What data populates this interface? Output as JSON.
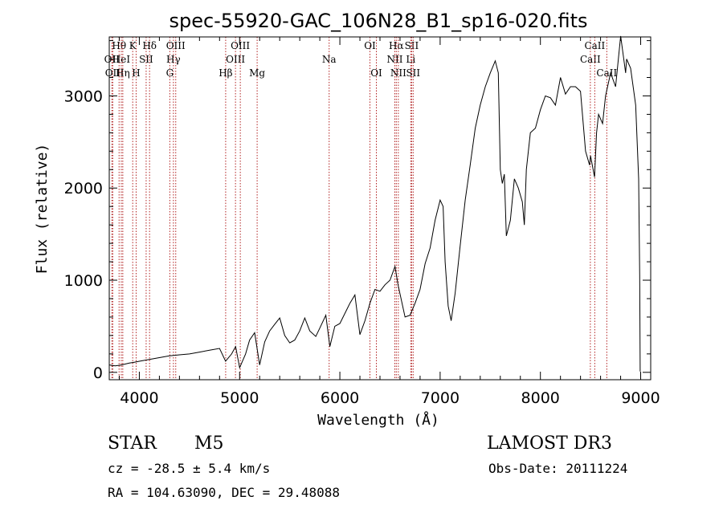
{
  "chart_data": {
    "type": "line",
    "title": "spec-55920-GAC_106N28_B1_sp16-020.fits",
    "xlabel": "Wavelength (Å)",
    "ylabel": "Flux (relative)",
    "xlim": [
      3700,
      9100
    ],
    "ylim": [
      -80,
      3640
    ],
    "x_ticks": [
      4000,
      5000,
      6000,
      7000,
      8000,
      9000
    ],
    "y_ticks": [
      0,
      1000,
      2000,
      3000
    ],
    "x_tick_labels": [
      "4000",
      "5000",
      "6000",
      "7000",
      "8000",
      "9000"
    ],
    "y_tick_labels": [
      "0",
      "1000",
      "2000",
      "3000"
    ],
    "series": [
      {
        "name": "spectrum",
        "x": [
          3700,
          3760,
          3820,
          3900,
          3950,
          4000,
          4100,
          4200,
          4300,
          4400,
          4500,
          4600,
          4700,
          4800,
          4860,
          4920,
          4960,
          5000,
          5060,
          5100,
          5150,
          5200,
          5250,
          5300,
          5350,
          5400,
          5450,
          5500,
          5550,
          5600,
          5650,
          5700,
          5760,
          5800,
          5860,
          5900,
          5950,
          6000,
          6100,
          6150,
          6200,
          6250,
          6300,
          6350,
          6400,
          6450,
          6500,
          6550,
          6580,
          6600,
          6650,
          6700,
          6750,
          6800,
          6850,
          6900,
          6950,
          7000,
          7030,
          7050,
          7080,
          7110,
          7150,
          7200,
          7250,
          7300,
          7350,
          7400,
          7450,
          7500,
          7550,
          7580,
          7600,
          7620,
          7640,
          7660,
          7700,
          7740,
          7780,
          7820,
          7840,
          7860,
          7900,
          7950,
          8000,
          8050,
          8100,
          8150,
          8200,
          8250,
          8300,
          8350,
          8400,
          8450,
          8490,
          8500,
          8540,
          8560,
          8580,
          8620,
          8650,
          8700,
          8750,
          8800,
          8850,
          8860,
          8900,
          8950,
          8980,
          8990,
          8995
        ],
        "y": [
          80,
          70,
          80,
          100,
          110,
          120,
          140,
          160,
          180,
          190,
          200,
          220,
          240,
          260,
          120,
          200,
          280,
          50,
          200,
          350,
          430,
          80,
          330,
          450,
          520,
          590,
          400,
          320,
          350,
          450,
          590,
          450,
          390,
          480,
          620,
          280,
          500,
          530,
          750,
          840,
          410,
          560,
          750,
          900,
          880,
          950,
          1000,
          1150,
          950,
          850,
          600,
          620,
          750,
          900,
          1180,
          1350,
          1650,
          1870,
          1800,
          1200,
          720,
          560,
          860,
          1380,
          1870,
          2250,
          2650,
          2900,
          3100,
          3250,
          3380,
          3250,
          2200,
          2050,
          2150,
          1480,
          1650,
          2100,
          2000,
          1850,
          1600,
          2200,
          2600,
          2650,
          2850,
          3000,
          2980,
          2900,
          3200,
          3020,
          3100,
          3100,
          3050,
          2400,
          2250,
          2350,
          2120,
          2600,
          2800,
          2700,
          3000,
          3250,
          3100,
          3650,
          3250,
          3400,
          3300,
          2900,
          2100,
          1050,
          10
        ]
      }
    ],
    "line_markers": [
      {
        "wavelength": 3726,
        "label": "OII",
        "row": 2
      },
      {
        "wavelength": 3735,
        "label": "OII",
        "row": 3
      },
      {
        "wavelength": 3798,
        "label": "Hθ",
        "row": 1
      },
      {
        "wavelength": 3820,
        "label": "HeI",
        "row": 2
      },
      {
        "wavelength": 3835,
        "label": "Hη",
        "row": 3
      },
      {
        "wavelength": 3934,
        "label": "K",
        "row": 1
      },
      {
        "wavelength": 3968,
        "label": "H",
        "row": 3
      },
      {
        "wavelength": 4068,
        "label": "SII",
        "row": 2
      },
      {
        "wavelength": 4102,
        "label": "Hδ",
        "row": 1
      },
      {
        "wavelength": 4304,
        "label": "G",
        "row": 3
      },
      {
        "wavelength": 4340,
        "label": "Hγ",
        "row": 2
      },
      {
        "wavelength": 4363,
        "label": "OIII",
        "row": 1
      },
      {
        "wavelength": 4861,
        "label": "Hβ",
        "row": 3
      },
      {
        "wavelength": 4959,
        "label": "OIII",
        "row": 2
      },
      {
        "wavelength": 5007,
        "label": "OIII",
        "row": 1
      },
      {
        "wavelength": 5175,
        "label": "Mg",
        "row": 3
      },
      {
        "wavelength": 5893,
        "label": "Na",
        "row": 2
      },
      {
        "wavelength": 6300,
        "label": "OI",
        "row": 1
      },
      {
        "wavelength": 6364,
        "label": "OI",
        "row": 3
      },
      {
        "wavelength": 6548,
        "label": "NII",
        "row": 2
      },
      {
        "wavelength": 6563,
        "label": "Hα",
        "row": 1
      },
      {
        "wavelength": 6583,
        "label": "NII",
        "row": 3
      },
      {
        "wavelength": 6707,
        "label": "Li",
        "row": 2
      },
      {
        "wavelength": 6716,
        "label": "SII",
        "row": 1
      },
      {
        "wavelength": 6731,
        "label": "SII",
        "row": 3
      },
      {
        "wavelength": 8498,
        "label": "CaII",
        "row": 2
      },
      {
        "wavelength": 8542,
        "label": "CaII",
        "row": 1
      },
      {
        "wavelength": 8662,
        "label": "CaII",
        "row": 3
      }
    ]
  },
  "info": {
    "object_type": "STAR",
    "subclass": "M5",
    "survey": "LAMOST DR3",
    "cz": "cz = -28.5 ± 5.4 km/s",
    "obs_date": "Obs-Date: 20111224",
    "coords": "RA = 104.63090, DEC =  29.48088"
  },
  "colors": {
    "spectrum": "#000000",
    "marker": "#b22222",
    "axes": "#000000",
    "background": "#ffffff"
  }
}
